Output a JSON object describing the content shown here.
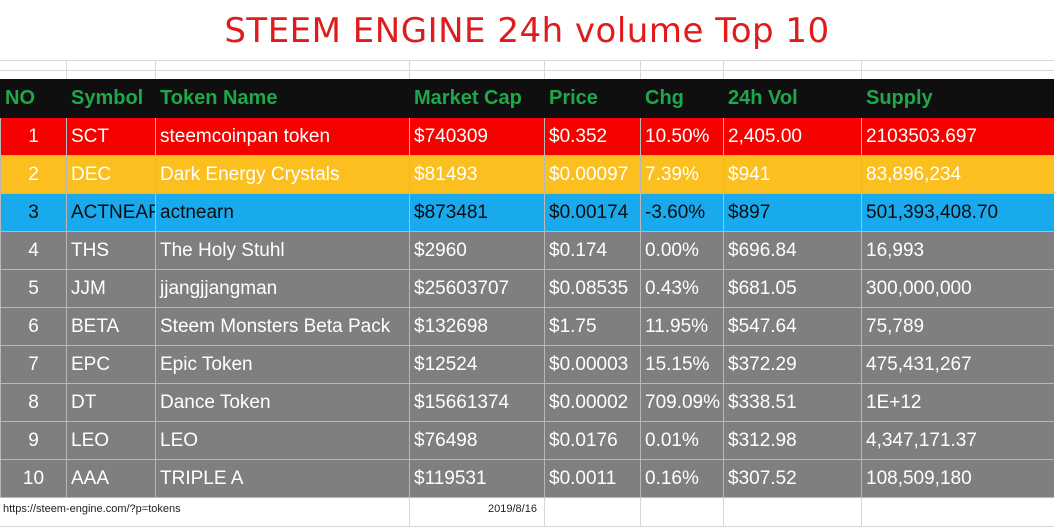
{
  "title": "STEEM ENGINE 24h volume Top 10",
  "columns": [
    "NO",
    "Symbol",
    "Token Name",
    "Market Cap",
    "Price",
    "Chg",
    "24h Vol",
    "Supply"
  ],
  "rows": [
    {
      "no": "1",
      "symbol": "SCT",
      "name": "steemcoinpan token",
      "market_cap": "$740309",
      "price": "$0.352",
      "chg": "10.50%",
      "vol": "2,405.00",
      "supply": "2103503.697",
      "color": "red"
    },
    {
      "no": "2",
      "symbol": "DEC",
      "name": "Dark Energy Crystals",
      "market_cap": "$81493",
      "price": "$0.00097",
      "chg": "7.39%",
      "vol": "$941",
      "supply": "83,896,234",
      "color": "yellow"
    },
    {
      "no": "3",
      "symbol": "ACTNEAR",
      "name": "actnearn",
      "market_cap": "$873481",
      "price": "$0.00174",
      "chg": "-3.60%",
      "vol": "$897",
      "supply": "501,393,408.70",
      "color": "blue"
    },
    {
      "no": "4",
      "symbol": "THS",
      "name": "The Holy Stuhl",
      "market_cap": "$2960",
      "price": "$0.174",
      "chg": "0.00%",
      "vol": "$696.84",
      "supply": "16,993",
      "color": "grey"
    },
    {
      "no": "5",
      "symbol": "JJM",
      "name": "jjangjjangman",
      "market_cap": "$25603707",
      "price": "$0.08535",
      "chg": "0.43%",
      "vol": "$681.05",
      "supply": "300,000,000",
      "color": "grey"
    },
    {
      "no": "6",
      "symbol": "BETA",
      "name": "Steem Monsters Beta Pack",
      "market_cap": "$132698",
      "price": "$1.75",
      "chg": "11.95%",
      "vol": "$547.64",
      "supply": "75,789",
      "color": "grey"
    },
    {
      "no": "7",
      "symbol": "EPC",
      "name": "Epic Token",
      "market_cap": "$12524",
      "price": "$0.00003",
      "chg": "15.15%",
      "vol": "$372.29",
      "supply": "475,431,267",
      "color": "grey"
    },
    {
      "no": "8",
      "symbol": "DT",
      "name": "Dance Token",
      "market_cap": "$15661374",
      "price": "$0.00002",
      "chg": "709.09%",
      "vol": "$338.51",
      "supply": "1E+12",
      "color": "grey"
    },
    {
      "no": "9",
      "symbol": "LEO",
      "name": "LEO",
      "market_cap": "$76498",
      "price": "$0.0176",
      "chg": "0.01%",
      "vol": "$312.98",
      "supply": "4,347,171.37",
      "color": "grey"
    },
    {
      "no": "10",
      "symbol": "AAA",
      "name": "TRIPLE A",
      "market_cap": "$119531",
      "price": "$0.0011",
      "chg": "0.16%",
      "vol": "$307.52",
      "supply": "108,509,180",
      "color": "grey"
    }
  ],
  "footer": {
    "url": "https://steem-engine.com/?p=tokens",
    "date": "2019/8/16"
  },
  "colors": {
    "title": "#e01b1b",
    "header_bg": "#0f0f0f",
    "header_text": "#1ea84a",
    "red": "#f70000",
    "yellow": "#fbbf20",
    "blue": "#19aaee",
    "grey": "#7f7f7f"
  }
}
